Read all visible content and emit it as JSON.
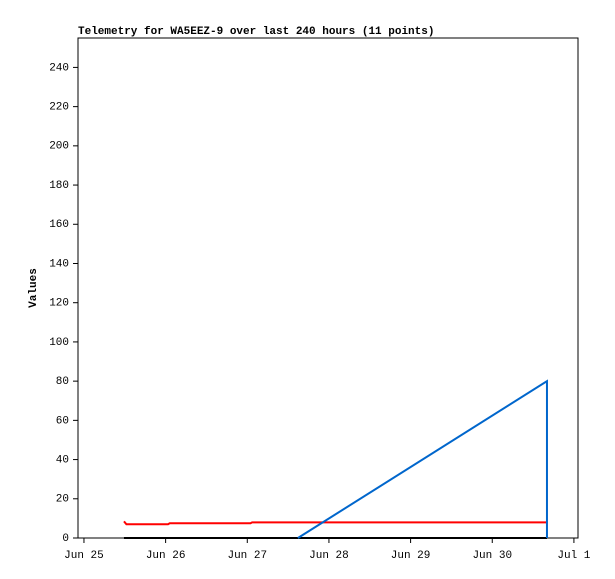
{
  "chart_data": {
    "type": "line",
    "title": "Telemetry for WA5EEZ-9 over last 240 hours (11 points)",
    "y_label": "Values",
    "xlim": [
      -0.073,
      6.05
    ],
    "xticks": [
      {
        "value": 0,
        "label": "Jun 25"
      },
      {
        "value": 1,
        "label": "Jun 26"
      },
      {
        "value": 2,
        "label": "Jun 27"
      },
      {
        "value": 3,
        "label": "Jun 28"
      },
      {
        "value": 4,
        "label": "Jun 29"
      },
      {
        "value": 5,
        "label": "Jun 30"
      },
      {
        "value": 6,
        "label": "Jul 1"
      }
    ],
    "ylim": [
      0,
      255
    ],
    "yticks": [
      0,
      20,
      40,
      60,
      80,
      100,
      120,
      140,
      160,
      180,
      200,
      220,
      240
    ],
    "grid": false,
    "series": [
      {
        "color": "#ff0000",
        "x": [
          0.49,
          0.52,
          1.03,
          1.05,
          2.04,
          2.06,
          5.67
        ],
        "values": [
          8.5,
          7,
          7,
          7.5,
          7.5,
          8,
          8
        ]
      },
      {
        "color": "#000000",
        "x": [
          0.49,
          5.67
        ],
        "values": [
          0,
          0
        ]
      },
      {
        "color": "#0066cc",
        "x": [
          2.62,
          5.67,
          5.67
        ],
        "values": [
          0,
          80,
          0
        ]
      }
    ]
  }
}
